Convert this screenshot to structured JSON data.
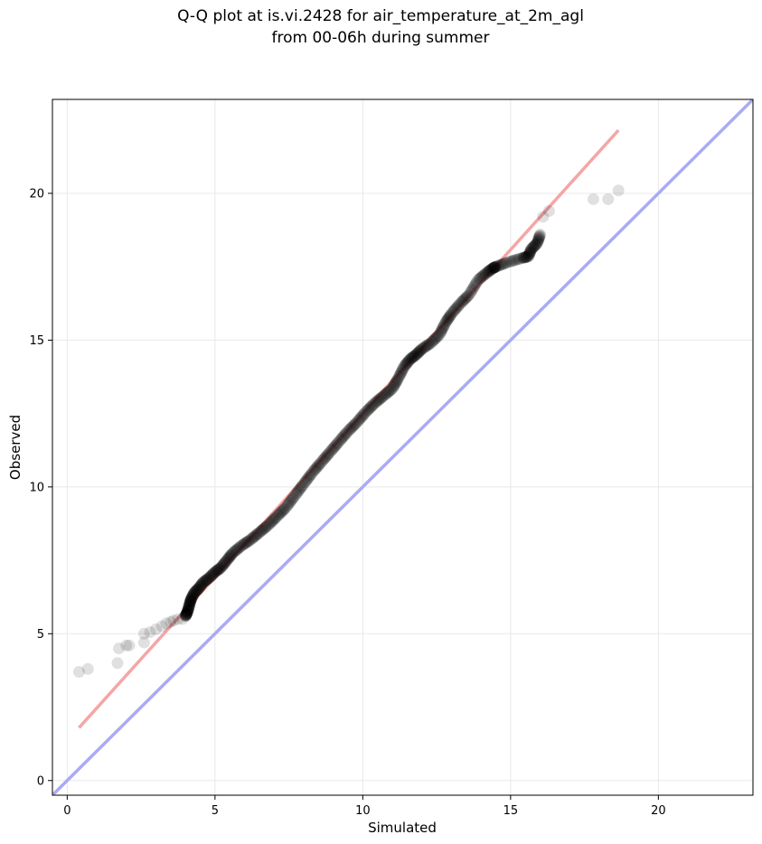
{
  "chart_data": {
    "type": "scatter",
    "title_line1": "Q-Q plot at is.vi.2428 for air_temperature_at_2m_agl",
    "title_line2": "from 00-06h during summer",
    "xlabel": "Simulated",
    "ylabel": "Observed",
    "xlim": [
      -0.5,
      23.2
    ],
    "ylim": [
      -0.5,
      23.2
    ],
    "xticks": [
      0,
      5,
      10,
      15,
      20
    ],
    "yticks": [
      0,
      5,
      10,
      15,
      20
    ],
    "grid": true,
    "colors": {
      "points": "#000000",
      "fit_line": "#f4a6a6",
      "identity_line": "#aaaaf5",
      "grid": "#e8e8e8"
    },
    "identity_line": {
      "from": [
        -0.5,
        -0.5
      ],
      "to": [
        23.2,
        23.2
      ]
    },
    "fit_line": {
      "from": [
        0.4,
        1.8
      ],
      "to": [
        18.65,
        22.15
      ]
    },
    "series": [
      {
        "values": [
          [
            0.4,
            3.7
          ],
          [
            0.7,
            3.8
          ],
          [
            1.7,
            4.0
          ],
          [
            1.75,
            4.5
          ],
          [
            2.0,
            4.6
          ],
          [
            2.1,
            4.6
          ],
          [
            2.6,
            4.7
          ],
          [
            2.6,
            5.0
          ],
          [
            2.8,
            5.05
          ],
          [
            3.0,
            5.15
          ],
          [
            3.2,
            5.25
          ],
          [
            3.35,
            5.35
          ],
          [
            3.5,
            5.4
          ],
          [
            3.6,
            5.45
          ],
          [
            3.75,
            5.5
          ],
          [
            3.9,
            5.5
          ],
          [
            4.0,
            5.6
          ],
          [
            4.05,
            5.7
          ],
          [
            4.1,
            5.85
          ],
          [
            4.15,
            6.05
          ],
          [
            4.2,
            6.2
          ],
          [
            4.3,
            6.4
          ],
          [
            4.45,
            6.55
          ],
          [
            4.6,
            6.75
          ],
          [
            4.8,
            6.9
          ],
          [
            5.0,
            7.1
          ],
          [
            5.2,
            7.25
          ],
          [
            5.4,
            7.5
          ],
          [
            5.6,
            7.75
          ],
          [
            5.9,
            8.0
          ],
          [
            6.2,
            8.2
          ],
          [
            6.5,
            8.45
          ],
          [
            6.8,
            8.7
          ],
          [
            7.1,
            9.0
          ],
          [
            7.4,
            9.3
          ],
          [
            7.7,
            9.7
          ],
          [
            8.0,
            10.1
          ],
          [
            8.3,
            10.5
          ],
          [
            8.6,
            10.85
          ],
          [
            8.9,
            11.2
          ],
          [
            9.2,
            11.55
          ],
          [
            9.5,
            11.9
          ],
          [
            9.8,
            12.2
          ],
          [
            10.1,
            12.55
          ],
          [
            10.4,
            12.85
          ],
          [
            10.7,
            13.1
          ],
          [
            11.0,
            13.35
          ],
          [
            11.2,
            13.7
          ],
          [
            11.4,
            14.1
          ],
          [
            11.6,
            14.35
          ],
          [
            11.8,
            14.5
          ],
          [
            12.0,
            14.7
          ],
          [
            12.3,
            14.9
          ],
          [
            12.6,
            15.2
          ],
          [
            12.8,
            15.6
          ],
          [
            13.0,
            15.9
          ],
          [
            13.3,
            16.25
          ],
          [
            13.6,
            16.55
          ],
          [
            13.9,
            17.05
          ],
          [
            14.2,
            17.3
          ],
          [
            14.4,
            17.45
          ],
          [
            14.5,
            17.5
          ],
          [
            14.9,
            17.65
          ],
          [
            15.4,
            17.8
          ],
          [
            15.6,
            17.85
          ],
          [
            15.7,
            18.1
          ],
          [
            15.9,
            18.3
          ],
          [
            16.0,
            18.6
          ],
          [
            16.1,
            19.2
          ],
          [
            16.3,
            19.4
          ],
          [
            17.8,
            19.8
          ],
          [
            18.3,
            19.8
          ],
          [
            18.65,
            20.1
          ]
        ]
      }
    ]
  }
}
